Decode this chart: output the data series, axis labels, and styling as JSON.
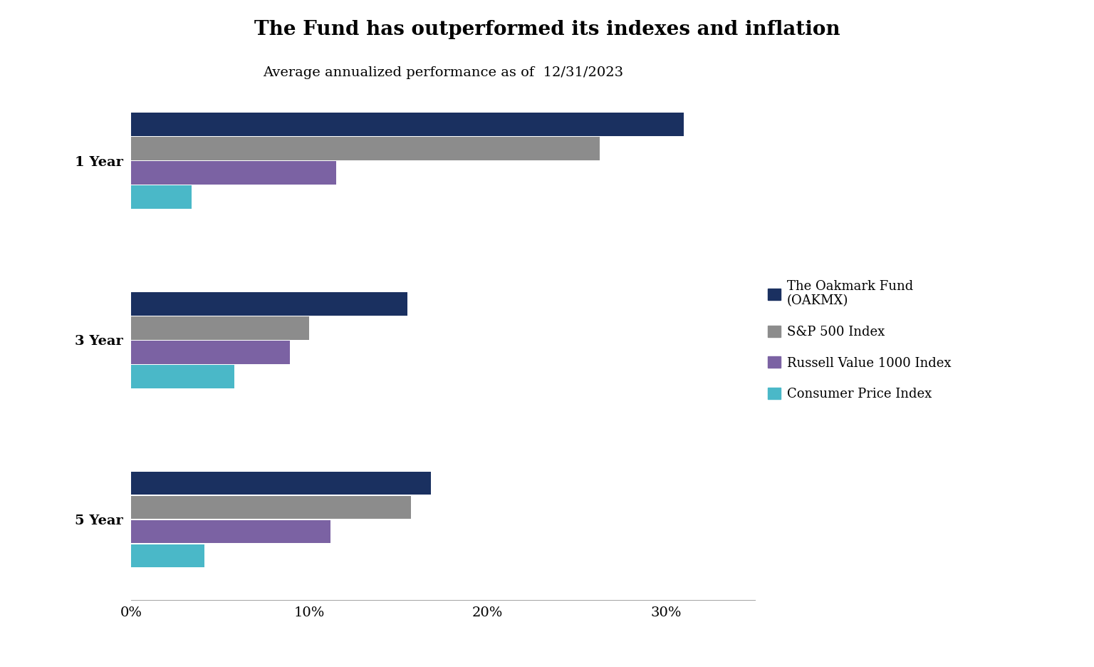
{
  "title": "The Fund has outperformed its indexes and inflation",
  "subtitle": "Average annualized performance as of  12/31/2023",
  "categories": [
    "1 Year",
    "3 Year",
    "5 Year"
  ],
  "series": {
    "The Oakmark Fund\n(OAKMX)": [
      31.0,
      15.5,
      16.8
    ],
    "S&P 500 Index": [
      26.3,
      10.0,
      15.7
    ],
    "Russell Value 1000 Index": [
      11.5,
      8.9,
      11.2
    ],
    "Consumer Price Index": [
      3.4,
      5.8,
      4.1
    ]
  },
  "colors": {
    "The Oakmark Fund\n(OAKMX)": "#1a3060",
    "S&P 500 Index": "#8c8c8c",
    "Russell Value 1000 Index": "#7b62a3",
    "Consumer Price Index": "#4ab8c8"
  },
  "legend_labels": [
    "The Oakmark Fund\n(OAKMX)",
    "S&P 500 Index",
    "Russell Value 1000 Index",
    "Consumer Price Index"
  ],
  "xlim": [
    0,
    35
  ],
  "xticks": [
    0,
    10,
    20,
    30
  ],
  "xticklabels": [
    "0%",
    "10%",
    "20%",
    "30%"
  ],
  "background_color": "#ffffff",
  "title_fontsize": 20,
  "subtitle_fontsize": 14,
  "tick_fontsize": 14
}
